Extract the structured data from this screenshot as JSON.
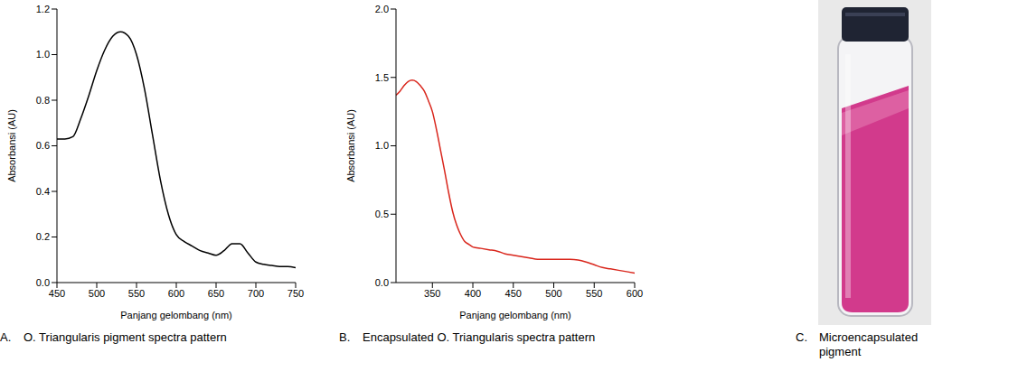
{
  "chart_data": [
    {
      "type": "line",
      "panel": "A.",
      "title": "O. Triangularis pigment spectra pattern",
      "x_label": "Panjang gelombang (nm)",
      "y_label": "Absorbansi (AU)",
      "x": [
        450,
        460,
        470,
        480,
        490,
        500,
        510,
        520,
        530,
        540,
        550,
        560,
        570,
        580,
        590,
        600,
        610,
        620,
        630,
        640,
        650,
        660,
        670,
        680,
        690,
        700,
        710,
        720,
        730,
        740,
        750
      ],
      "values": [
        0.63,
        0.63,
        0.64,
        0.72,
        0.82,
        0.93,
        1.02,
        1.08,
        1.1,
        1.08,
        1.0,
        0.85,
        0.65,
        0.45,
        0.3,
        0.21,
        0.18,
        0.16,
        0.14,
        0.13,
        0.12,
        0.14,
        0.17,
        0.17,
        0.13,
        0.09,
        0.08,
        0.075,
        0.07,
        0.07,
        0.065
      ],
      "color": "#000000",
      "xlim": [
        450,
        750
      ],
      "xticks": [
        450,
        500,
        550,
        600,
        650,
        700,
        750
      ],
      "ylim": [
        0,
        1.2
      ],
      "yticks": [
        {
          "value": 0,
          "label": "0.0"
        },
        0.2,
        0.4,
        0.6,
        0.8,
        {
          "value": 1,
          "label": "1.0"
        },
        1.2
      ],
      "grid": false
    },
    {
      "type": "line",
      "panel": "B.",
      "title": "Encapsulated O. Triangularis spectra pattern",
      "x_label": "Panjang gelombang (nm)",
      "y_label": "Absorbansi (AU)",
      "x": [
        305,
        310,
        315,
        320,
        325,
        330,
        335,
        340,
        345,
        350,
        355,
        360,
        365,
        370,
        375,
        380,
        385,
        390,
        395,
        400,
        410,
        420,
        430,
        440,
        450,
        460,
        470,
        480,
        490,
        500,
        510,
        520,
        530,
        540,
        550,
        560,
        570,
        580,
        590,
        600
      ],
      "values": [
        1.37,
        1.4,
        1.44,
        1.47,
        1.48,
        1.47,
        1.44,
        1.4,
        1.33,
        1.25,
        1.12,
        0.97,
        0.82,
        0.66,
        0.52,
        0.42,
        0.35,
        0.3,
        0.28,
        0.26,
        0.25,
        0.24,
        0.23,
        0.21,
        0.2,
        0.19,
        0.18,
        0.17,
        0.17,
        0.17,
        0.17,
        0.17,
        0.165,
        0.15,
        0.13,
        0.11,
        0.1,
        0.09,
        0.08,
        0.07
      ],
      "color": "#d9261c",
      "xlim": [
        305,
        600
      ],
      "xticks": [
        350,
        400,
        450,
        500,
        550,
        600
      ],
      "ylim": [
        0,
        2
      ],
      "yticks": [
        {
          "value": 0,
          "label": "0.0"
        },
        0.5,
        {
          "value": 1,
          "label": "1.0"
        },
        1.5,
        {
          "value": 2,
          "label": "2.0"
        }
      ],
      "grid": false
    }
  ],
  "image": {
    "panel": "C.",
    "title": "Microencapsulated pigment"
  }
}
